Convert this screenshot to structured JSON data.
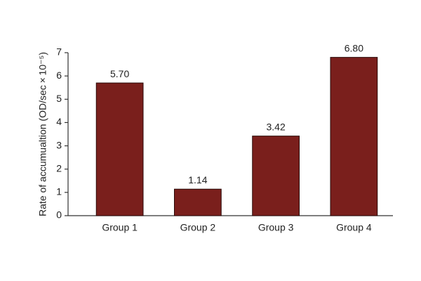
{
  "chart_data": {
    "type": "bar",
    "y_label": "Rate of accumualtion (OD/sec × 10⁻⁵)",
    "categories": [
      "Group 1",
      "Group 2",
      "Group 3",
      "Group 4"
    ],
    "values": [
      5.7,
      1.14,
      3.42,
      6.8
    ],
    "value_labels": [
      "5.70",
      "1.14",
      "3.42",
      "6.80"
    ],
    "color": "#7a1f1c",
    "ylim": [
      0,
      7
    ],
    "yticks": [
      0,
      1,
      2,
      3,
      4,
      5,
      6,
      7
    ],
    "grid": false
  }
}
